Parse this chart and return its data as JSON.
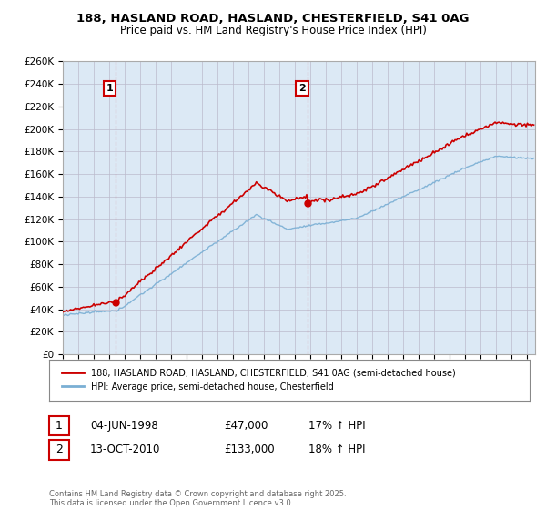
{
  "title": "188, HASLAND ROAD, HASLAND, CHESTERFIELD, S41 0AG",
  "subtitle": "Price paid vs. HM Land Registry's House Price Index (HPI)",
  "ylabel_ticks": [
    "£0",
    "£20K",
    "£40K",
    "£60K",
    "£80K",
    "£100K",
    "£120K",
    "£140K",
    "£160K",
    "£180K",
    "£200K",
    "£220K",
    "£240K",
    "£260K"
  ],
  "ylim": [
    0,
    260000
  ],
  "yticks": [
    0,
    20000,
    40000,
    60000,
    80000,
    100000,
    120000,
    140000,
    160000,
    180000,
    200000,
    220000,
    240000,
    260000
  ],
  "sale1_year": 1998.42,
  "sale1_price": 47000,
  "sale1_label": "1",
  "sale2_year": 2010.79,
  "sale2_price": 133000,
  "sale2_label": "2",
  "legend_line1": "188, HASLAND ROAD, HASLAND, CHESTERFIELD, S41 0AG (semi-detached house)",
  "legend_line2": "HPI: Average price, semi-detached house, Chesterfield",
  "table_row1": [
    "1",
    "04-JUN-1998",
    "£47,000",
    "17% ↑ HPI"
  ],
  "table_row2": [
    "2",
    "13-OCT-2010",
    "£133,000",
    "18% ↑ HPI"
  ],
  "footer": "Contains HM Land Registry data © Crown copyright and database right 2025.\nThis data is licensed under the Open Government Licence v3.0.",
  "line_color_property": "#cc0000",
  "line_color_hpi": "#7aafd4",
  "chart_bg": "#dce9f5",
  "background_color": "#ffffff",
  "grid_color": "#bbbbcc",
  "title_fontsize": 9.5,
  "subtitle_fontsize": 8.5,
  "xmin": 1995,
  "xmax": 2025.5
}
